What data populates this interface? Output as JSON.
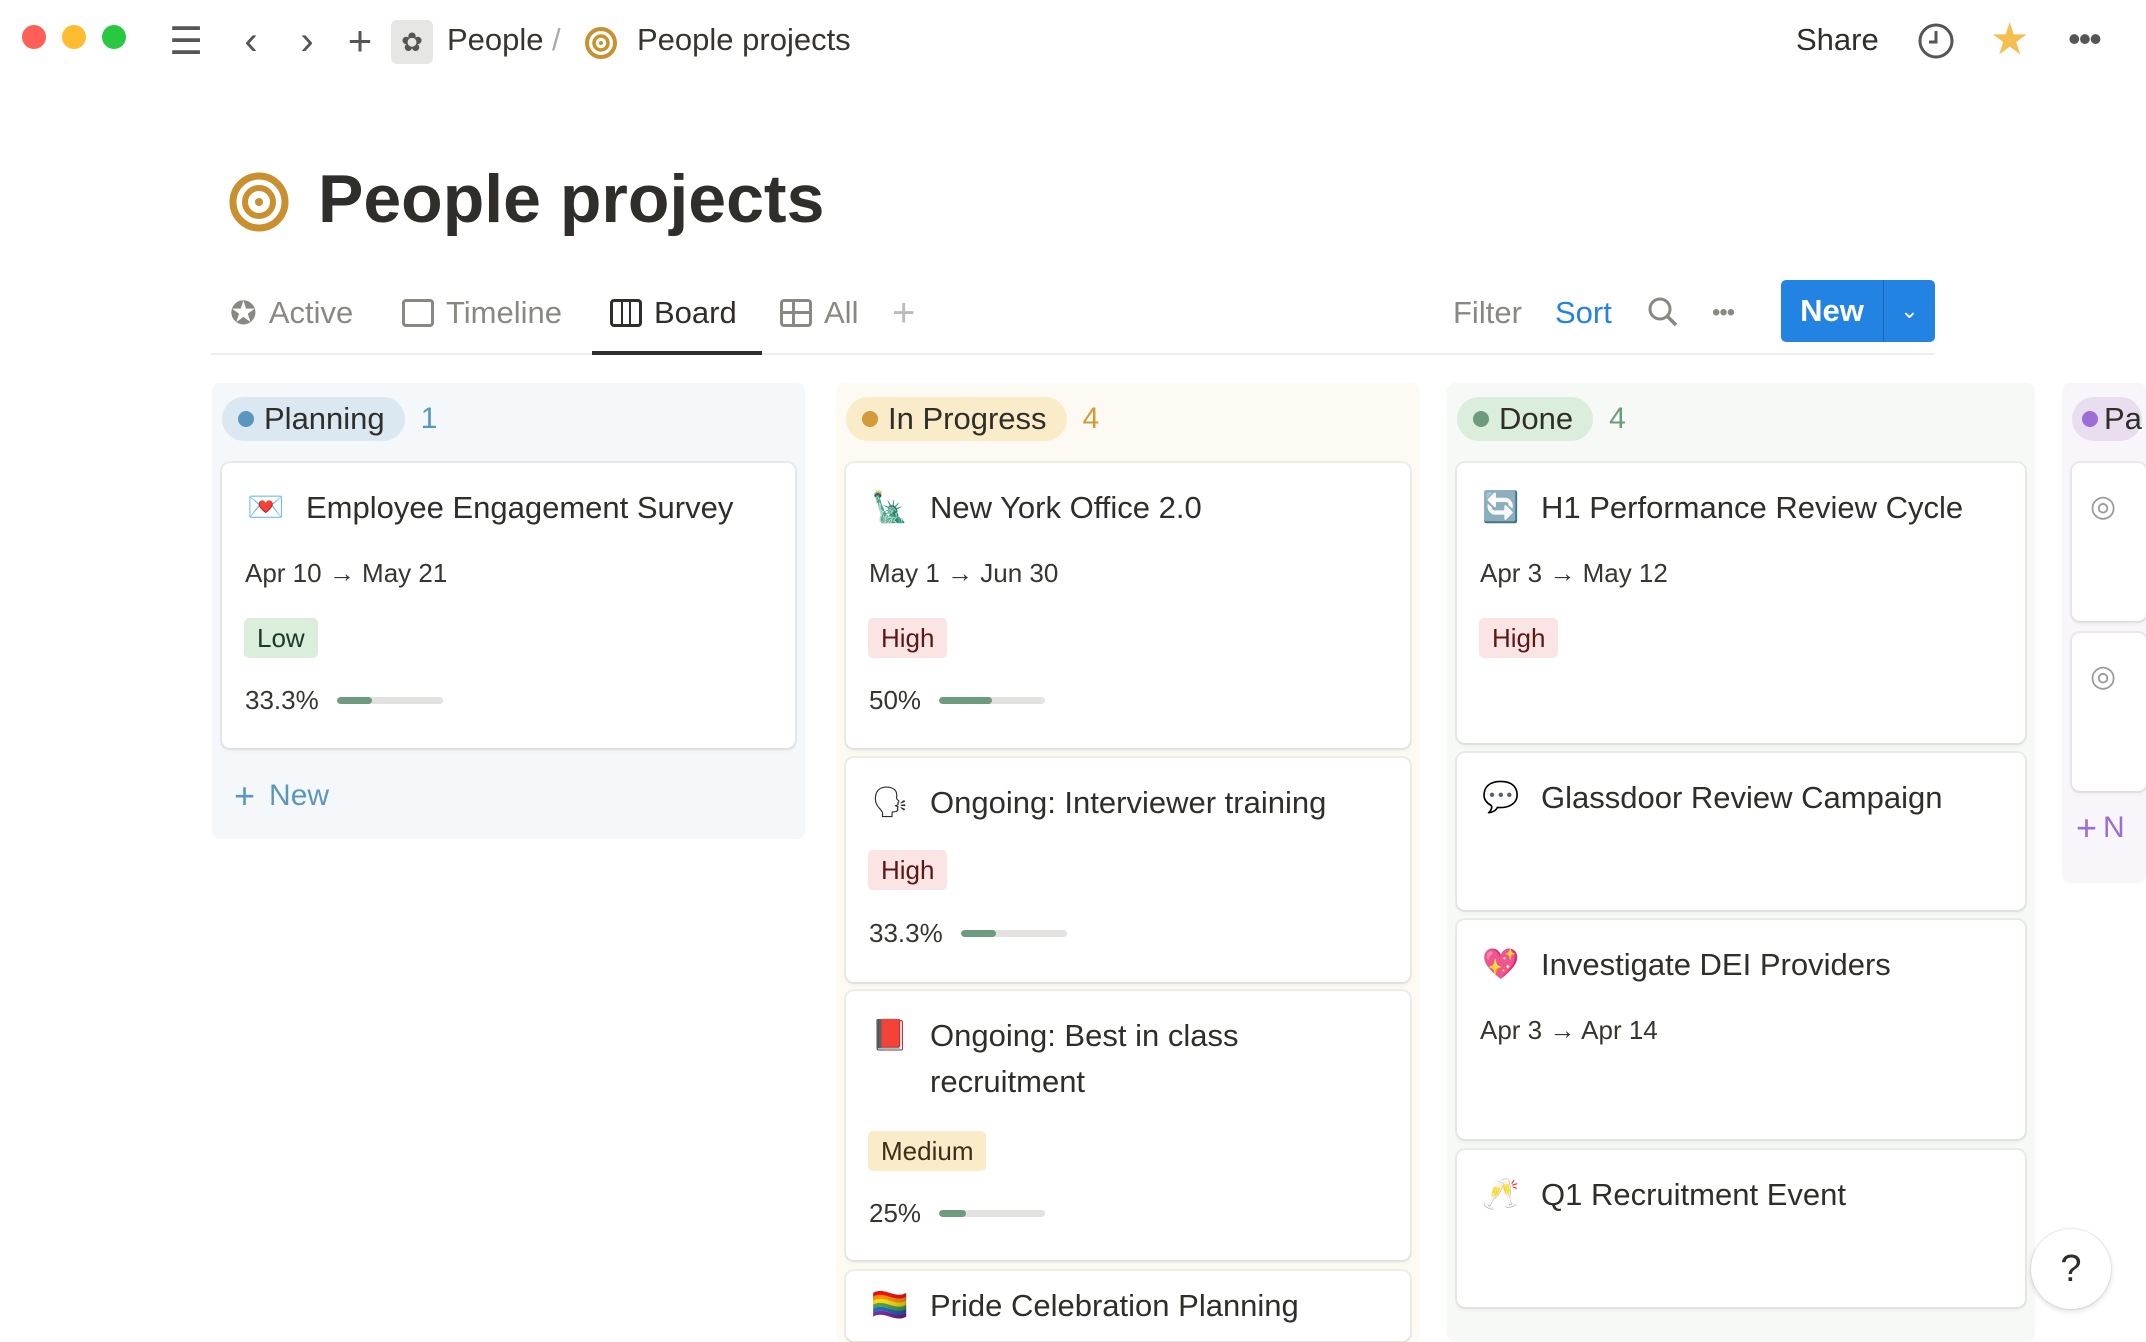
{
  "breadcrumb": {
    "parent": "People",
    "separator": "/",
    "current": "People projects"
  },
  "topbar": {
    "share": "Share"
  },
  "page": {
    "title": "People projects"
  },
  "tabs": [
    {
      "label": "Active",
      "icon": "star-circle-icon"
    },
    {
      "label": "Timeline",
      "icon": "timeline-icon"
    },
    {
      "label": "Board",
      "icon": "board-icon",
      "active": true
    },
    {
      "label": "All",
      "icon": "table-icon"
    }
  ],
  "toolbar": {
    "filter": "Filter",
    "sort": "Sort",
    "new": "New"
  },
  "colors": {
    "accent": "#2383e2",
    "brand": "#c8902e"
  },
  "columns": [
    {
      "name": "Planning",
      "count": "1",
      "add": "New",
      "cards": [
        {
          "emoji": "💌",
          "title": "Employee Engagement Survey",
          "date": "Apr 10 → May 21",
          "priority": "Low",
          "progress_label": "33.3%",
          "progress": 0.333
        }
      ]
    },
    {
      "name": "In Progress",
      "count": "4",
      "cards": [
        {
          "emoji": "🗽",
          "title": "New York Office 2.0",
          "date": "May 1 → Jun 30",
          "priority": "High",
          "progress_label": "50%",
          "progress": 0.5
        },
        {
          "emoji": "🗣",
          "title": "Ongoing: Interviewer training",
          "priority": "High",
          "progress_label": "33.3%",
          "progress": 0.333
        },
        {
          "emoji": "📕",
          "title": "Ongoing: Best in class recruitment",
          "priority": "Medium",
          "progress_label": "25%",
          "progress": 0.25
        },
        {
          "emoji": "🏳️‍🌈",
          "title": "Pride Celebration Planning"
        }
      ]
    },
    {
      "name": "Done",
      "count": "4",
      "cards": [
        {
          "emoji": "🔄",
          "title": "H1 Performance Review Cycle",
          "date": "Apr 3 → May 12",
          "priority": "High"
        },
        {
          "emoji": "💬",
          "title": "Glassdoor Review Campaign"
        },
        {
          "emoji": "💖",
          "title": "Investigate DEI Providers",
          "date": "Apr 3 → Apr 14"
        },
        {
          "emoji": "🥂",
          "title": "Q1 Recruitment Event"
        }
      ]
    },
    {
      "name": "Pa",
      "add": "N"
    }
  ],
  "help": "?"
}
